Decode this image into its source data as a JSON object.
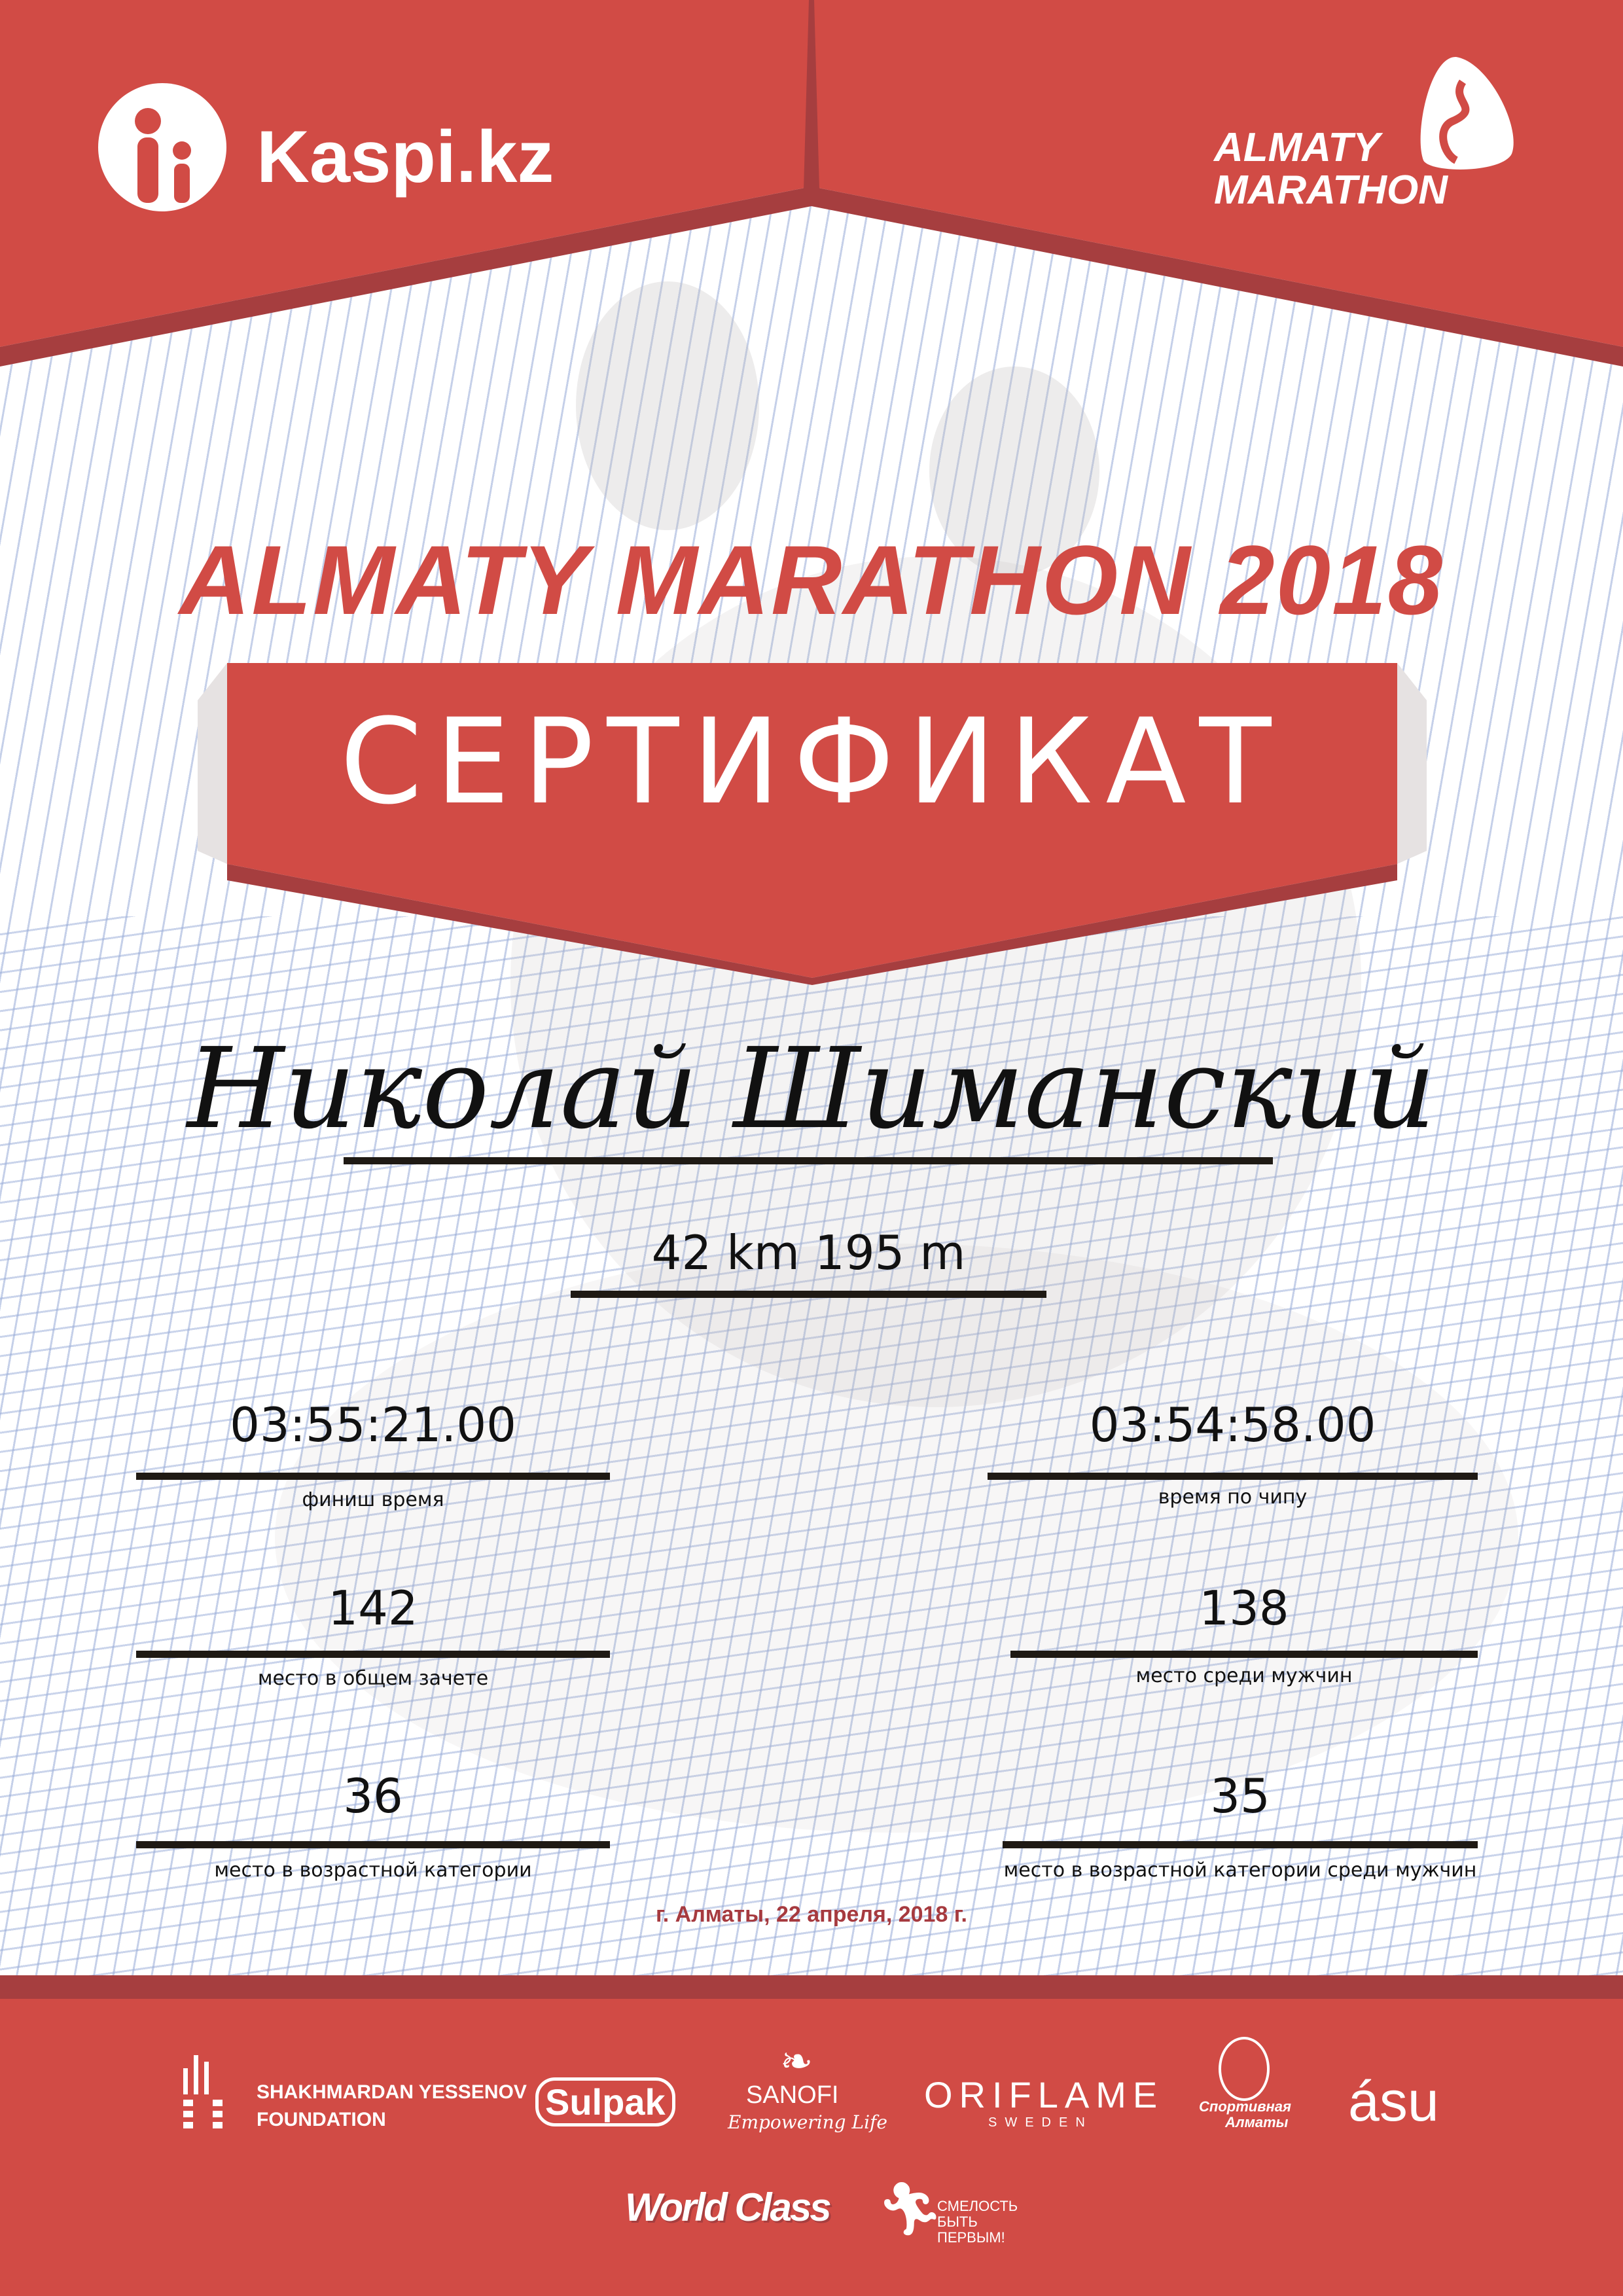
{
  "colors": {
    "brand_red": "#D14B45",
    "dark_red": "#A63E3F",
    "date_text": "#A63A3F"
  },
  "header": {
    "left_logo": "Kaspi.kz",
    "right_logo": [
      "ALMATY",
      "MARATHON"
    ]
  },
  "title": "ALMATY MARATHON 2018",
  "certificate_label": "СЕРТИФИКАТ",
  "participant_name": "Николай Шиманский",
  "distance": "42 km 195 m",
  "results": {
    "finish_time": {
      "value": "03:55:21.00",
      "label": "финиш время"
    },
    "chip_time": {
      "value": "03:54:58.00",
      "label": "время по чипу"
    },
    "overall_place": {
      "value": "142",
      "label": "место в общем зачете"
    },
    "men_place": {
      "value": "138",
      "label": "место среди мужчин"
    },
    "age_place": {
      "value": "36",
      "label": "место в возрастной категории"
    },
    "age_men_place": {
      "value": "35",
      "label": "место в возрастной категории среди мужчин"
    }
  },
  "date_place": "г. Алматы, 22 апреля, 2018 г.",
  "sponsors": {
    "yessenov": [
      "SHAKHMARDAN YESSENOV",
      "FOUNDATION"
    ],
    "sulpak": "Sulpak",
    "sanofi": [
      "SANOFI",
      "Empowering Life"
    ],
    "oriflame": [
      "ORIFLAME",
      "SWEDEN"
    ],
    "sport_almaty": [
      "Спортивная",
      "Алматы"
    ],
    "asu": "ásu",
    "worldclass": "World Class",
    "smelost": [
      "СМЕЛОСТЬ",
      "БЫТЬ",
      "ПЕРВЫМ!"
    ]
  }
}
